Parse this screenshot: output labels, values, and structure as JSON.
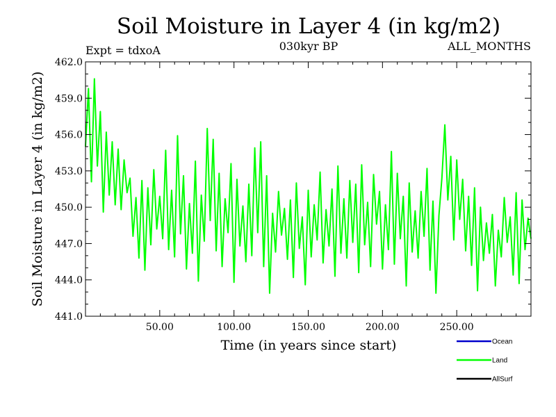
{
  "chart_data": {
    "type": "line",
    "title": "Soil Moisture in Layer 4 (in kg/m2)",
    "subtitle_left": "Expt = tdxoA",
    "subtitle_center": "030kyr BP",
    "subtitle_right": "ALL_MONTHS",
    "xlabel": "Time (in years since start)",
    "ylabel": "Soil Moisture in Layer 4 (in kg/m2)",
    "xlim": [
      0,
      300
    ],
    "ylim": [
      441.0,
      462.0
    ],
    "x_ticks": [
      50,
      100,
      150,
      200,
      250
    ],
    "x_tick_labels": [
      "50.00",
      "100.00",
      "150.00",
      "200.00",
      "250.00"
    ],
    "y_ticks": [
      441.0,
      444.0,
      447.0,
      450.0,
      453.0,
      456.0,
      459.0,
      462.0
    ],
    "y_tick_labels": [
      "441.0",
      "444.0",
      "447.0",
      "450.0",
      "453.0",
      "456.0",
      "459.0",
      "462.0"
    ],
    "legend": [
      {
        "name": "Ocean",
        "color": "#0000cc"
      },
      {
        "name": "Land",
        "color": "#00ff00"
      },
      {
        "name": "AllSurf",
        "color": "#000000"
      }
    ],
    "series": [
      {
        "name": "Land",
        "color": "#00ff00",
        "x": [
          0,
          2,
          4,
          6,
          8,
          10,
          12,
          14,
          16,
          18,
          20,
          22,
          24,
          26,
          28,
          30,
          32,
          34,
          36,
          38,
          40,
          42,
          44,
          46,
          48,
          50,
          52,
          54,
          56,
          58,
          60,
          62,
          64,
          66,
          68,
          70,
          72,
          74,
          76,
          78,
          80,
          82,
          84,
          86,
          88,
          90,
          92,
          94,
          96,
          98,
          100,
          102,
          104,
          106,
          108,
          110,
          112,
          114,
          116,
          118,
          120,
          122,
          124,
          126,
          128,
          130,
          132,
          134,
          136,
          138,
          140,
          142,
          144,
          146,
          148,
          150,
          152,
          154,
          156,
          158,
          160,
          162,
          164,
          166,
          168,
          170,
          172,
          174,
          176,
          178,
          180,
          182,
          184,
          186,
          188,
          190,
          192,
          194,
          196,
          198,
          200,
          202,
          204,
          206,
          208,
          210,
          212,
          214,
          216,
          218,
          220,
          222,
          224,
          226,
          228,
          230,
          232,
          234,
          236,
          238,
          240,
          242,
          244,
          246,
          248,
          250,
          252,
          254,
          256,
          258,
          260,
          262,
          264,
          266,
          268,
          270,
          272,
          274,
          276,
          278,
          280,
          282,
          284,
          286,
          288,
          290,
          292,
          294,
          296,
          298,
          300
        ],
        "values": [
          455.0,
          459.8,
          452.1,
          460.6,
          453.4,
          457.9,
          449.6,
          456.2,
          451.0,
          455.4,
          450.2,
          454.8,
          449.8,
          453.9,
          451.2,
          452.4,
          447.6,
          450.8,
          445.8,
          452.2,
          444.8,
          451.6,
          446.9,
          453.1,
          448.2,
          450.9,
          447.4,
          454.7,
          446.5,
          451.4,
          445.9,
          455.9,
          447.8,
          452.6,
          444.9,
          450.3,
          446.2,
          453.8,
          443.9,
          451.0,
          447.2,
          456.5,
          448.9,
          455.6,
          446.4,
          452.8,
          445.1,
          450.7,
          447.9,
          453.6,
          443.8,
          452.3,
          446.8,
          450.1,
          445.5,
          451.9,
          446.0,
          454.9,
          447.9,
          455.4,
          445.1,
          452.6,
          442.9,
          449.5,
          446.3,
          451.3,
          447.7,
          449.9,
          445.7,
          450.6,
          444.2,
          452.0,
          446.6,
          449.2,
          443.6,
          451.4,
          445.9,
          450.2,
          447.3,
          452.9,
          445.4,
          449.8,
          446.8,
          451.5,
          444.3,
          453.4,
          446.2,
          450.7,
          445.8,
          452.2,
          447.1,
          451.9,
          444.6,
          453.5,
          446.9,
          450.4,
          445.1,
          452.7,
          448.6,
          451.3,
          444.9,
          450.2,
          446.5,
          454.6,
          445.3,
          452.8,
          447.4,
          450.9,
          443.5,
          452.0,
          446.3,
          449.7,
          445.8,
          451.3,
          447.6,
          453.2,
          444.8,
          450.5,
          442.9,
          449.3,
          452.4,
          456.8,
          450.6,
          454.2,
          447.3,
          453.9,
          449.0,
          452.3,
          446.4,
          450.9,
          445.2,
          451.6,
          443.1,
          450.0,
          445.6,
          448.7,
          446.2,
          449.4,
          443.5,
          448.1,
          445.9,
          450.8,
          447.1,
          449.2,
          444.4,
          451.2,
          443.7,
          450.6,
          446.5,
          449.1,
          447.4
        ]
      }
    ]
  }
}
